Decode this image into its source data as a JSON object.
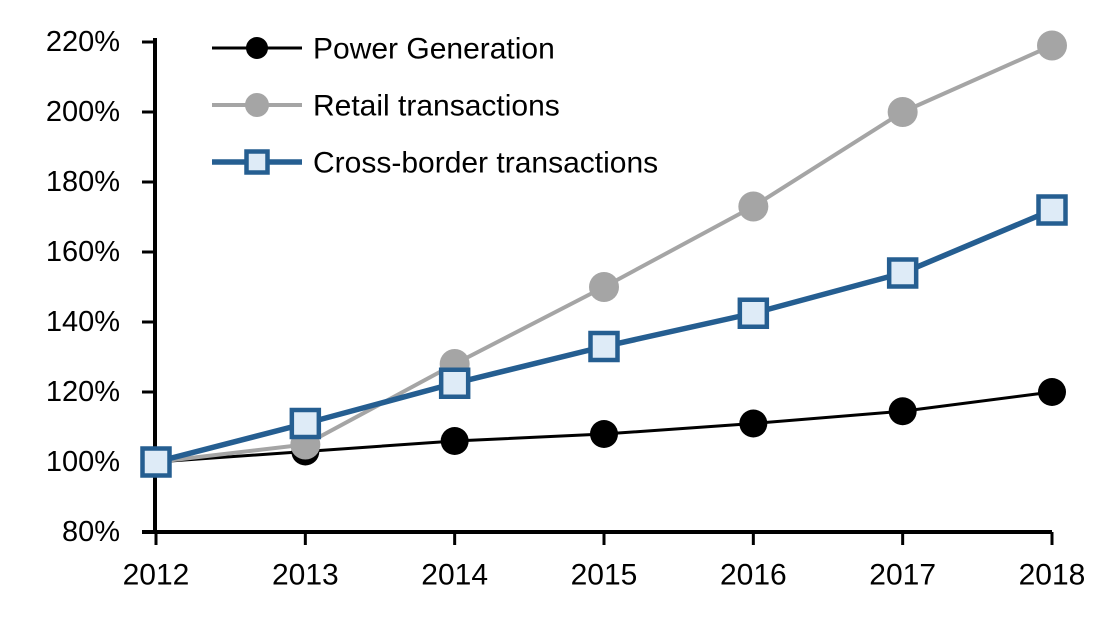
{
  "chart_data": {
    "type": "line",
    "title": "",
    "xlabel": "",
    "ylabel": "",
    "background": "#FFFFFF",
    "axis_color": "#000000",
    "grid": false,
    "legend": {
      "position": "top-left"
    },
    "x_axis": {
      "tick_labels": [
        "2012",
        "2013",
        "2014",
        "2015",
        "2016",
        "2017",
        "2018"
      ]
    },
    "y_axis": {
      "min": 80,
      "max": 220,
      "tick_step": 20,
      "ticks": [
        {
          "value": 80,
          "label": "80%"
        },
        {
          "value": 100,
          "label": "100%"
        },
        {
          "value": 120,
          "label": "120%"
        },
        {
          "value": 140,
          "label": "140%"
        },
        {
          "value": 160,
          "label": "160%"
        },
        {
          "value": 180,
          "label": "180%"
        },
        {
          "value": 200,
          "label": "200%"
        },
        {
          "value": 220,
          "label": "220%"
        }
      ]
    },
    "categories": [
      "2012",
      "2013",
      "2014",
      "2015",
      "2016",
      "2017",
      "2018"
    ],
    "series": [
      {
        "name": "Power Generation",
        "values": [
          100,
          103,
          106,
          108,
          111,
          114.5,
          120
        ],
        "color": "#000000",
        "marker": "circle",
        "marker_fill": "#000000"
      },
      {
        "name": "Retail transactions",
        "values": [
          100,
          105,
          128,
          150,
          173,
          200,
          219
        ],
        "color": "#A5A5A5",
        "marker": "circle",
        "marker_fill": "#A5A5A5"
      },
      {
        "name": "Cross-border transactions",
        "values": [
          100,
          111,
          122.5,
          133,
          142.5,
          154,
          172
        ],
        "color": "#255E91",
        "marker": "square",
        "marker_fill": "#DEEBF7"
      }
    ]
  }
}
